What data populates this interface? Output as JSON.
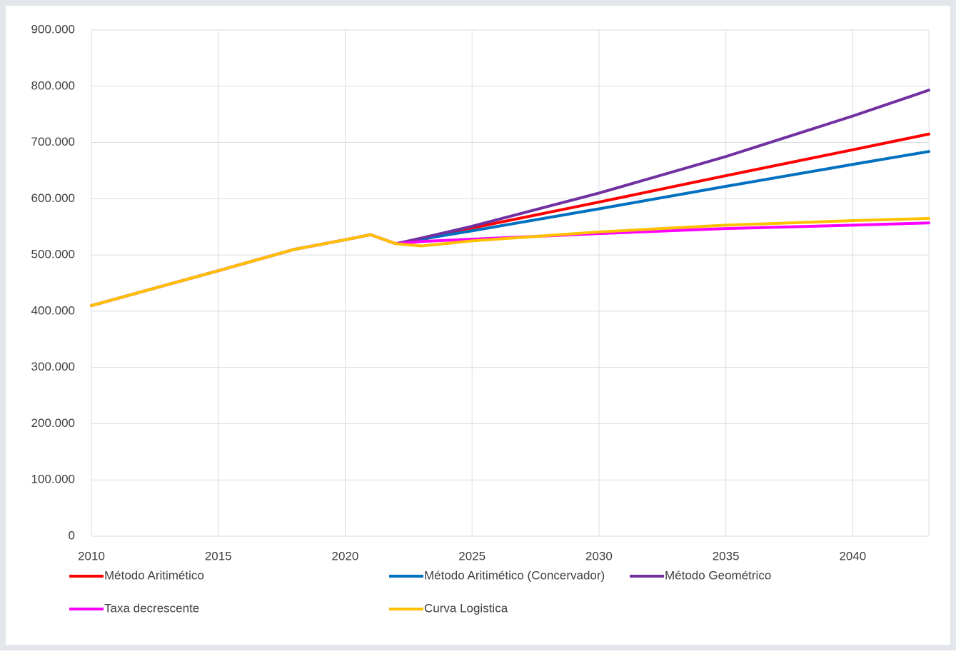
{
  "chart_data": {
    "type": "line",
    "x": [
      2010,
      2015,
      2018,
      2020,
      2021,
      2022,
      2023,
      2025,
      2030,
      2035,
      2040,
      2043
    ],
    "series": [
      {
        "name": "Método Aritimético",
        "color": "#ff0000",
        "values": [
          410000,
          472000,
          510000,
          527000,
          536000,
          520000,
          527000,
          548000,
          594000,
          641000,
          687000,
          715000
        ]
      },
      {
        "name": "Método Aritimético (Concervador)",
        "color": "#0070c0",
        "values": [
          410000,
          472000,
          510000,
          527000,
          536000,
          520000,
          528000,
          543000,
          582000,
          622000,
          661000,
          684000
        ]
      },
      {
        "name": "Método Geométrico",
        "color": "#7030a0",
        "values": [
          410000,
          472000,
          510000,
          527000,
          536000,
          520000,
          530000,
          551000,
          610000,
          675000,
          747000,
          793000
        ]
      },
      {
        "name": "Taxa decrescente",
        "color": "#ff00ff",
        "values": [
          410000,
          472000,
          510000,
          527000,
          536000,
          520000,
          524000,
          528000,
          538000,
          547000,
          553000,
          557000
        ]
      },
      {
        "name": "Curva Logistica",
        "color": "#ffc000",
        "values": [
          410000,
          472000,
          510000,
          527000,
          536000,
          520000,
          516000,
          525000,
          541000,
          553000,
          561000,
          565000
        ]
      }
    ],
    "xlim": [
      2010,
      2043
    ],
    "xticks": [
      2010,
      2015,
      2020,
      2025,
      2030,
      2035,
      2040
    ],
    "ylim": [
      0,
      900000
    ],
    "yticks": [
      0,
      {
        "value": 100000,
        "label": "100.000"
      },
      {
        "value": 200000,
        "label": "200.000"
      },
      {
        "value": 300000,
        "label": "300.000"
      },
      {
        "value": 400000,
        "label": "400.000"
      },
      {
        "value": 500000,
        "label": "500.000"
      },
      {
        "value": 600000,
        "label": "600.000"
      },
      {
        "value": 700000,
        "label": "700.000"
      },
      {
        "value": 800000,
        "label": "800.000"
      },
      {
        "value": 900000,
        "label": "900.000"
      }
    ],
    "grid": true,
    "legend": "bottom"
  }
}
